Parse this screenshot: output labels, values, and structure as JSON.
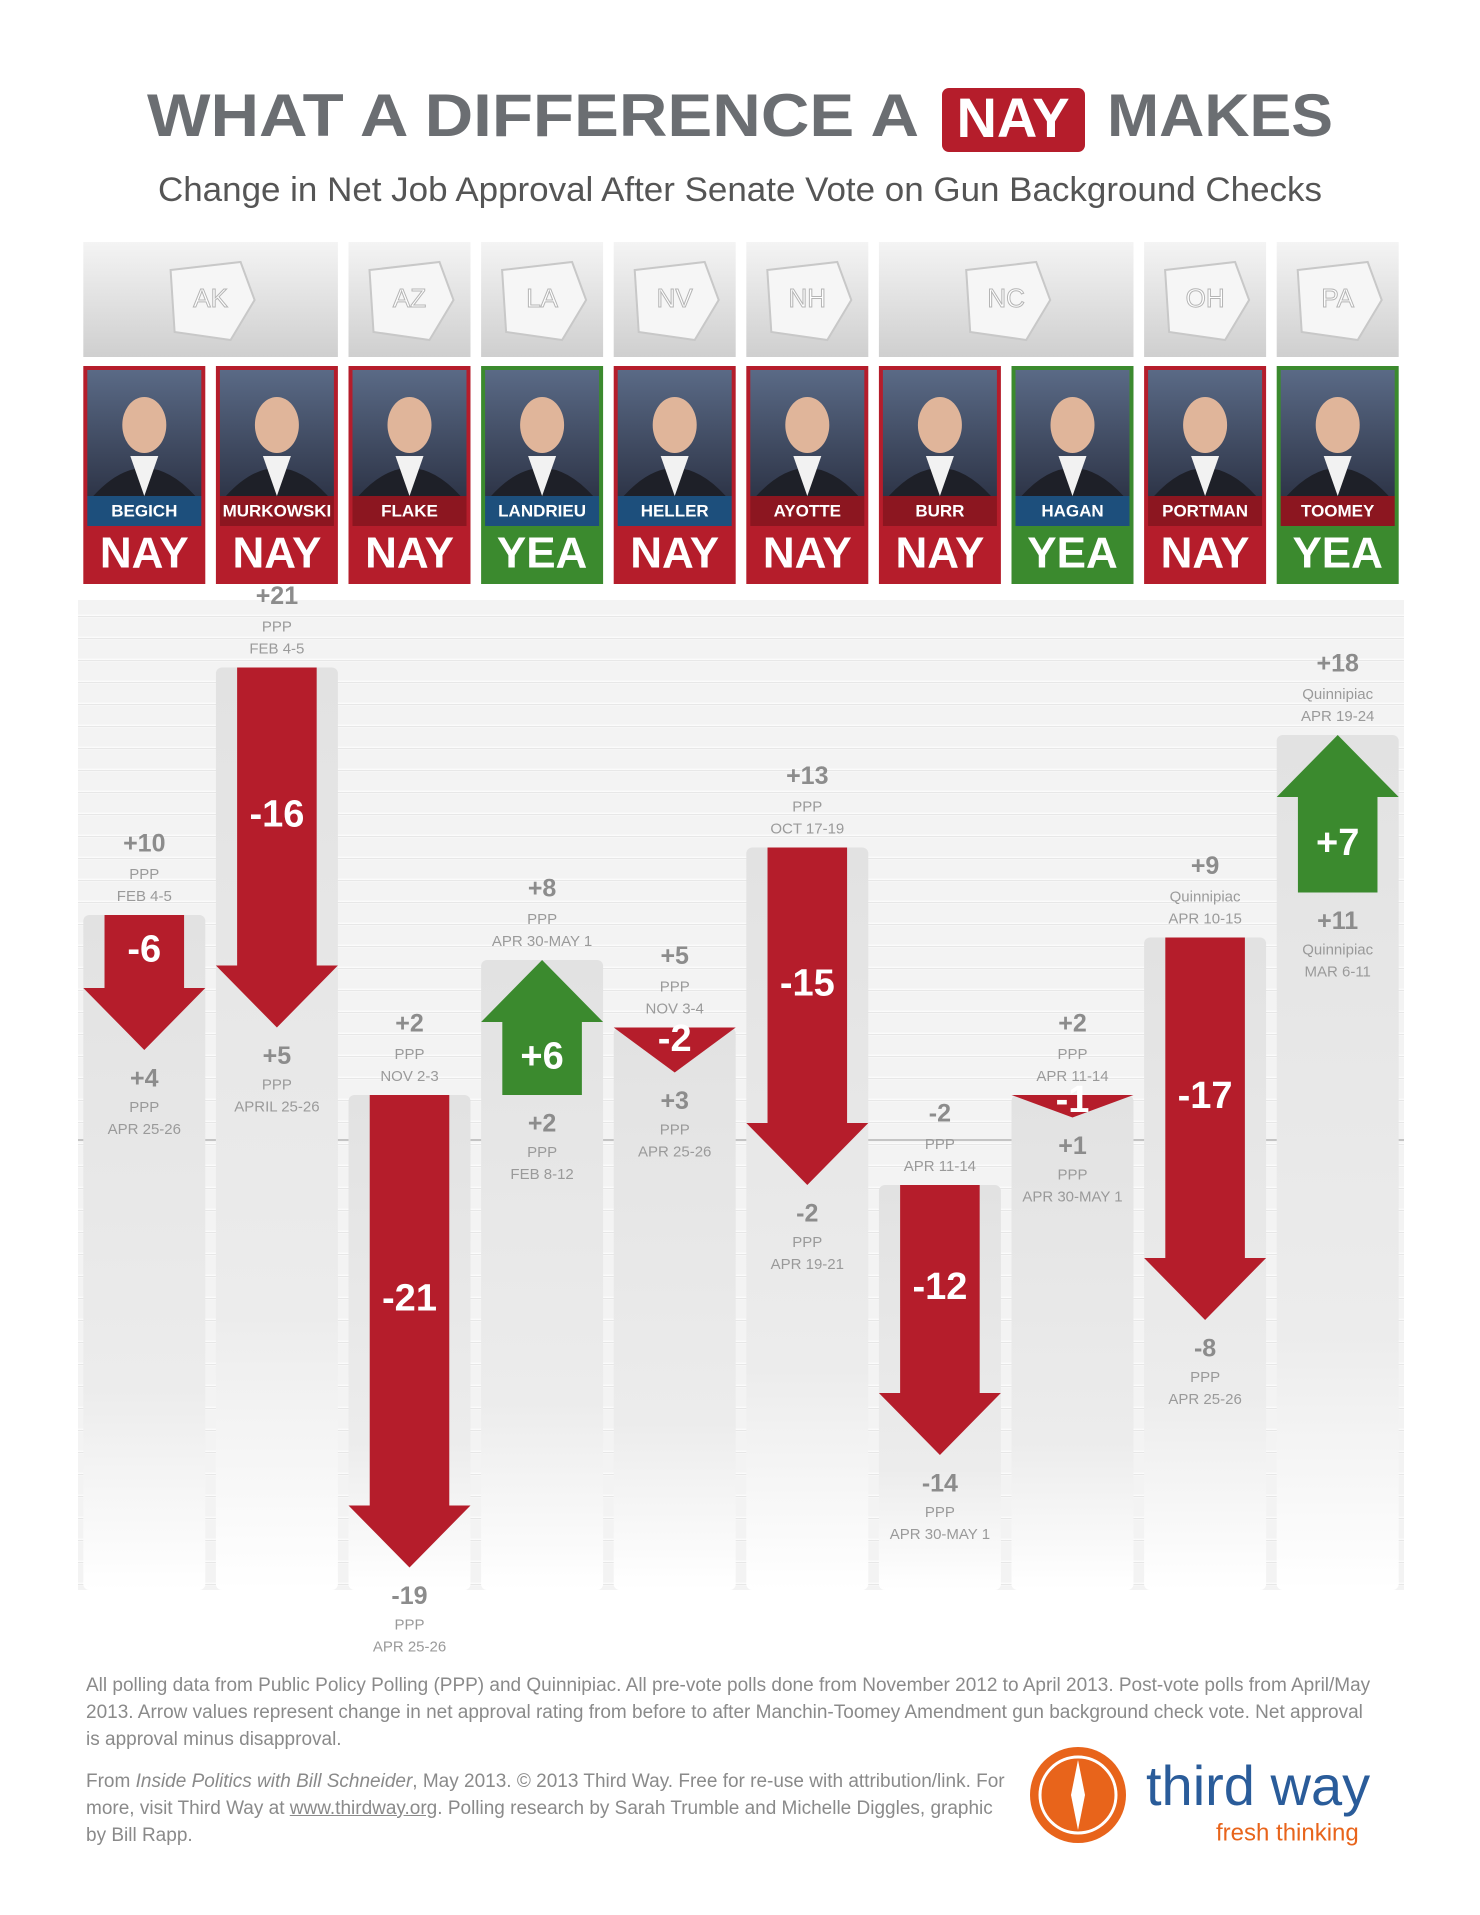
{
  "chart_data": {
    "type": "arrow",
    "title": [
      "WHAT A DIFFERENCE A",
      "NAY",
      "MAKES"
    ],
    "subtitle": "Change in Net Job Approval After Senate Vote on Gun Background Checks",
    "states": [
      "AK",
      null,
      "AZ",
      "LA",
      "NV",
      "NH",
      "NC",
      null,
      "OH",
      "PA"
    ],
    "categories": [
      "BEGICH",
      "MURKOWSKI",
      "FLAKE",
      "LANDRIEU",
      "HELLER",
      "AYOTTE",
      "BURR",
      "HAGAN",
      "PORTMAN",
      "TOOMEY"
    ],
    "name_colors": [
      "#1d4f7c",
      "#8c1620",
      "#8c1620",
      "#1d4f7c",
      "#1d4f7c",
      "#8c1620",
      "#8c1620",
      "#1d4f7c",
      "#8c1620",
      "#8c1620"
    ],
    "votes": [
      "NAY",
      "NAY",
      "NAY",
      "YEA",
      "NAY",
      "NAY",
      "NAY",
      "YEA",
      "NAY",
      "YEA"
    ],
    "vote_colors": [
      "#b51d2b",
      "#b51d2b",
      "#b51d2b",
      "#3b8a2e",
      "#b51d2b",
      "#b51d2b",
      "#b51d2b",
      "#3b8a2e",
      "#b51d2b",
      "#3b8a2e"
    ],
    "before": {
      "values": [
        10,
        21,
        2,
        2,
        5,
        13,
        -2,
        2,
        9,
        11
      ],
      "value_labels": [
        "+10",
        "+21",
        "+2",
        "+2",
        "+5",
        "+13",
        "-2",
        "+2",
        "+9",
        "+11"
      ],
      "pollsters": [
        "PPP",
        "PPP",
        "PPP",
        "PPP",
        "PPP",
        "PPP",
        "PPP",
        "PPP",
        "Quinnipiac",
        "Quinnipiac"
      ],
      "dates": [
        "FEB 4-5",
        "FEB 4-5",
        "NOV 2-3",
        "FEB 8-12",
        "NOV 3-4",
        "OCT 17-19",
        "APR 11-14",
        "APR 11-14",
        "APR 10-15",
        "MAR 6-11"
      ]
    },
    "after": {
      "values": [
        4,
        5,
        -19,
        8,
        3,
        -2,
        -14,
        1,
        -8,
        18
      ],
      "value_labels": [
        "+4",
        "+5",
        "-19",
        "+8",
        "+3",
        "-2",
        "-14",
        "+1",
        "-8",
        "+18"
      ],
      "pollsters": [
        "PPP",
        "PPP",
        "PPP",
        "PPP",
        "PPP",
        "PPP",
        "PPP",
        "PPP",
        "PPP",
        "Quinnipiac"
      ],
      "dates": [
        "APR 25-26",
        "APRIL 25-26",
        "APR 25-26",
        "APR 30-MAY 1",
        "APR 25-26",
        "APR 19-21",
        "APR 30-MAY 1",
        "APR 30-MAY 1",
        "APR 25-26",
        "APR 19-24"
      ]
    },
    "change": {
      "values": [
        -6,
        -16,
        -21,
        6,
        -2,
        -15,
        -12,
        -1,
        -17,
        7
      ],
      "value_labels": [
        "-6",
        "-16",
        "-21",
        "+6",
        "-2",
        "-15",
        "-12",
        "-1",
        "-17",
        "+7"
      ]
    },
    "up_color": "#3b8a2e",
    "down_color": "#b51d2b",
    "ylim": [
      -20,
      24
    ]
  },
  "footer": {
    "notes": "All polling data from Public Policy Polling (PPP) and Quinnipiac. All pre-vote polls done from November 2012 to April 2013. Post-vote polls from April/May 2013. Arrow values represent change in net approval rating from before to after Manchin-Toomey Amendment gun background check vote. Net approval is approval minus disapproval.",
    "credit": [
      "From ",
      "Inside Politics with Bill Schneider",
      ", May 2013. © 2013 Third Way. Free for re-use with attribution/link. For more, visit Third Way at ",
      "www.thirdway.org",
      ". Polling research by Sarah Trumble and Michelle Diggles, graphic by Bill Rapp."
    ]
  },
  "logo": {
    "name": "third way",
    "tagline": "fresh thinking"
  }
}
